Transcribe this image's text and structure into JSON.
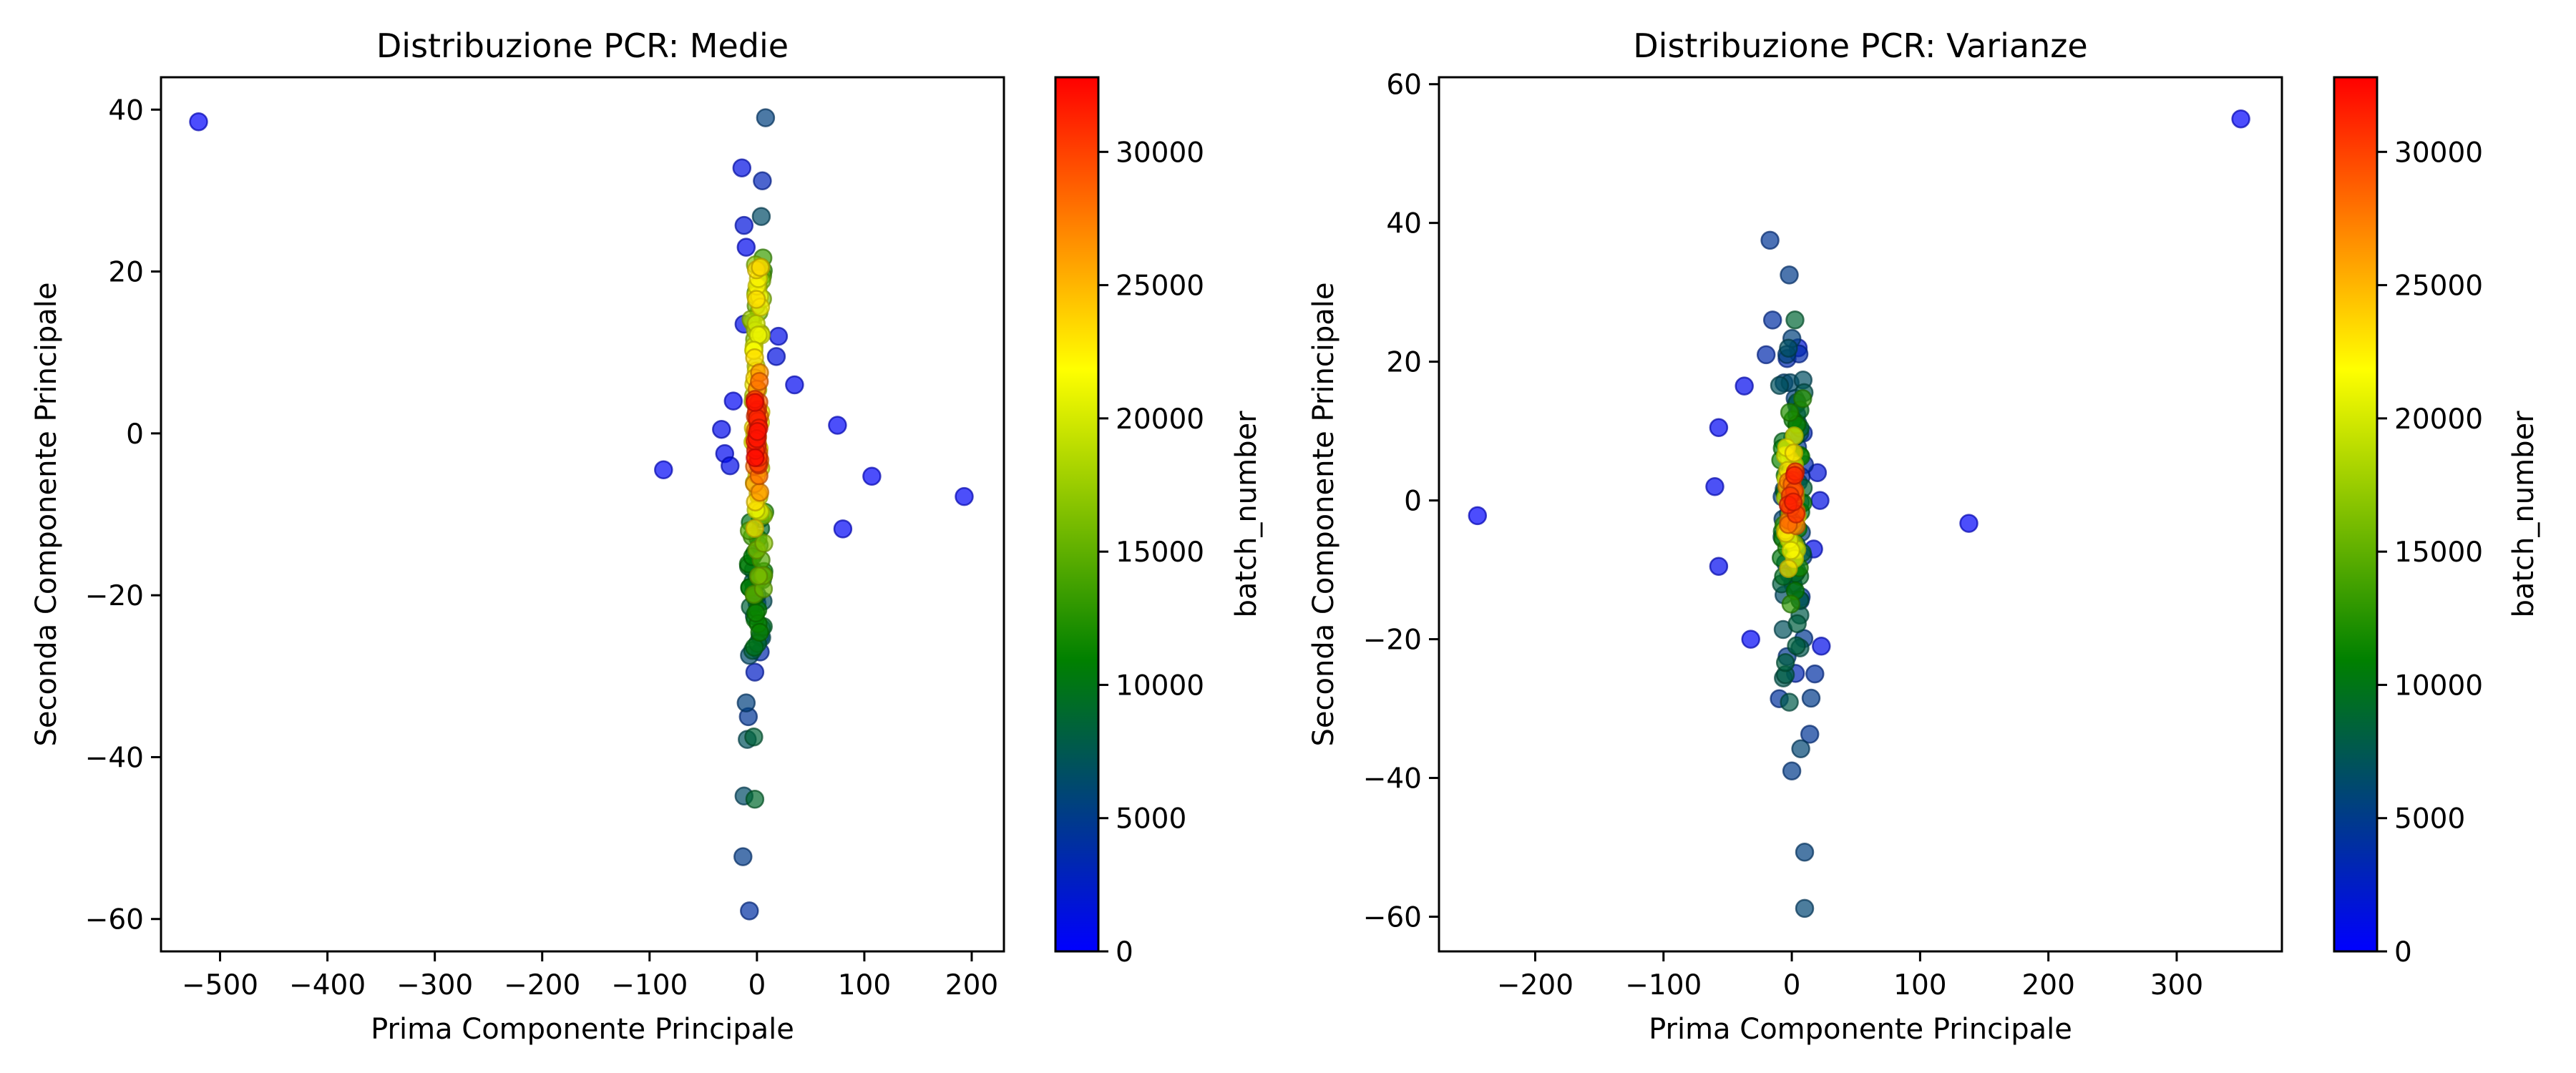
{
  "figure": {
    "colormap": [
      "#0000ff",
      "#008000",
      "#ffff00",
      "#ff0000"
    ],
    "point_alpha": 0.7
  },
  "chart_data": [
    {
      "type": "scatter",
      "title": "Distribuzione PCR: Medie",
      "xlabel": "Prima Componente Principale",
      "ylabel": "Seconda Componente Principale",
      "xlim": [
        -555,
        230
      ],
      "ylim": [
        -64,
        44
      ],
      "xticks": [
        -500,
        -400,
        -300,
        -200,
        -100,
        0,
        100,
        200
      ],
      "yticks": [
        -60,
        -40,
        -20,
        0,
        20,
        40
      ],
      "grid": false,
      "colorbar": {
        "label": "batch_number",
        "min": 0,
        "max": 32800,
        "ticks": [
          0,
          5000,
          10000,
          15000,
          20000,
          25000,
          30000
        ]
      },
      "outliers": [
        {
          "x": -520,
          "y": 38.5,
          "c": 150
        },
        {
          "x": -87,
          "y": -4.5,
          "c": 400
        },
        {
          "x": 75,
          "y": 1,
          "c": 300
        },
        {
          "x": 107,
          "y": -5.3,
          "c": 250
        },
        {
          "x": 193,
          "y": -7.8,
          "c": 300
        },
        {
          "x": 80,
          "y": -11.8,
          "c": 350
        },
        {
          "x": 35,
          "y": 6,
          "c": 600
        },
        {
          "x": -33,
          "y": 0.5,
          "c": 800
        },
        {
          "x": -30,
          "y": -2.5,
          "c": 700
        },
        {
          "x": -22,
          "y": 4,
          "c": 500
        },
        {
          "x": -25,
          "y": -4,
          "c": 900
        },
        {
          "x": 8,
          "y": 39,
          "c": 5500
        },
        {
          "x": -14,
          "y": 32.8,
          "c": 1200
        },
        {
          "x": 5,
          "y": 31.2,
          "c": 3000
        },
        {
          "x": -12,
          "y": 25.7,
          "c": 1500
        },
        {
          "x": 4,
          "y": 26.8,
          "c": 6500
        },
        {
          "x": -10,
          "y": 23,
          "c": 800
        },
        {
          "x": 20,
          "y": 12,
          "c": 1000
        },
        {
          "x": 18,
          "y": 9.5,
          "c": 1300
        },
        {
          "x": -12,
          "y": 13.5,
          "c": 1000
        },
        {
          "x": -9,
          "y": -37.8,
          "c": 7000
        },
        {
          "x": -3,
          "y": -37.5,
          "c": 8500
        },
        {
          "x": -10,
          "y": -33.3,
          "c": 5500
        },
        {
          "x": -8,
          "y": -35,
          "c": 4500
        },
        {
          "x": -12,
          "y": -44.8,
          "c": 6500
        },
        {
          "x": -2,
          "y": -45.2,
          "c": 9000
        },
        {
          "x": -13,
          "y": -52.3,
          "c": 5000
        },
        {
          "x": -7,
          "y": -59,
          "c": 4000
        },
        {
          "x": -2,
          "y": -29.5,
          "c": 2500
        },
        {
          "x": 3,
          "y": -27,
          "c": 3500
        }
      ],
      "core": [
        {
          "y_from": -27,
          "y_to": -17,
          "xspread": 7,
          "c_from": 4000,
          "c_to": 12000,
          "n": 26
        },
        {
          "y_from": -20,
          "y_to": -10,
          "xspread": 8,
          "c_from": 9000,
          "c_to": 17000,
          "n": 24
        },
        {
          "y_from": -11,
          "y_to": 21,
          "xspread": 4,
          "c_from": 19000,
          "c_to": 23500,
          "n": 44
        },
        {
          "y_from": 12,
          "y_to": 22,
          "xspread": 7,
          "c_from": 12000,
          "c_to": 19000,
          "n": 14
        },
        {
          "y_from": -7,
          "y_to": 7,
          "xspread": 3,
          "c_from": 26000,
          "c_to": 29000,
          "n": 16
        },
        {
          "y_from": -4,
          "y_to": 4,
          "xspread": 2,
          "c_from": 30000,
          "c_to": 32700,
          "n": 20
        }
      ]
    },
    {
      "type": "scatter",
      "title": "Distribuzione PCR: Varianze",
      "xlabel": "Prima Componente Principale",
      "ylabel": "Seconda Componente Principale",
      "xlim": [
        -275,
        382
      ],
      "ylim": [
        -65,
        61
      ],
      "xticks": [
        -200,
        -100,
        0,
        100,
        200,
        300
      ],
      "yticks": [
        -60,
        -40,
        -20,
        0,
        20,
        40,
        60
      ],
      "grid": false,
      "colorbar": {
        "label": "batch_number",
        "min": 0,
        "max": 32800,
        "ticks": [
          0,
          5000,
          10000,
          15000,
          20000,
          25000,
          30000
        ]
      },
      "outliers": [
        {
          "x": 350,
          "y": 55,
          "c": 150
        },
        {
          "x": -245,
          "y": -2.2,
          "c": 150
        },
        {
          "x": 138,
          "y": -3.3,
          "c": 250
        },
        {
          "x": -60,
          "y": 2,
          "c": 600
        },
        {
          "x": -57,
          "y": 10.5,
          "c": 500
        },
        {
          "x": -57,
          "y": -9.5,
          "c": 700
        },
        {
          "x": -32,
          "y": -20,
          "c": 400
        },
        {
          "x": -37,
          "y": 16.5,
          "c": 800
        },
        {
          "x": -17,
          "y": 37.5,
          "c": 4500
        },
        {
          "x": -2,
          "y": 32.5,
          "c": 5000
        },
        {
          "x": -15,
          "y": 26,
          "c": 4000
        },
        {
          "x": 5,
          "y": 22,
          "c": 2000
        },
        {
          "x": -20,
          "y": 21,
          "c": 3500
        },
        {
          "x": 23,
          "y": -21,
          "c": 1000
        },
        {
          "x": 18,
          "y": -25,
          "c": 4000
        },
        {
          "x": 15,
          "y": -28.5,
          "c": 5000
        },
        {
          "x": 14,
          "y": -33.7,
          "c": 4500
        },
        {
          "x": 7,
          "y": -35.8,
          "c": 6000
        },
        {
          "x": 0,
          "y": -39,
          "c": 5000
        },
        {
          "x": 10,
          "y": -50.7,
          "c": 5500
        },
        {
          "x": 10,
          "y": -58.8,
          "c": 6000
        },
        {
          "x": 22,
          "y": 0,
          "c": 1200
        },
        {
          "x": 20,
          "y": 4,
          "c": 1500
        },
        {
          "x": 17,
          "y": -7,
          "c": 1000
        }
      ],
      "core": [
        {
          "y_from": -27,
          "y_to": 24,
          "xspread": 10,
          "c_from": 3000,
          "c_to": 9000,
          "n": 60
        },
        {
          "y_from": -14,
          "y_to": 14,
          "xspread": 9,
          "c_from": 8000,
          "c_to": 13000,
          "n": 40
        },
        {
          "y_from": -9,
          "y_to": 9,
          "xspread": 5,
          "c_from": 18000,
          "c_to": 23500,
          "n": 26
        },
        {
          "y_from": -4,
          "y_to": 4,
          "xspread": 4,
          "c_from": 26000,
          "c_to": 32700,
          "n": 20
        }
      ]
    }
  ]
}
